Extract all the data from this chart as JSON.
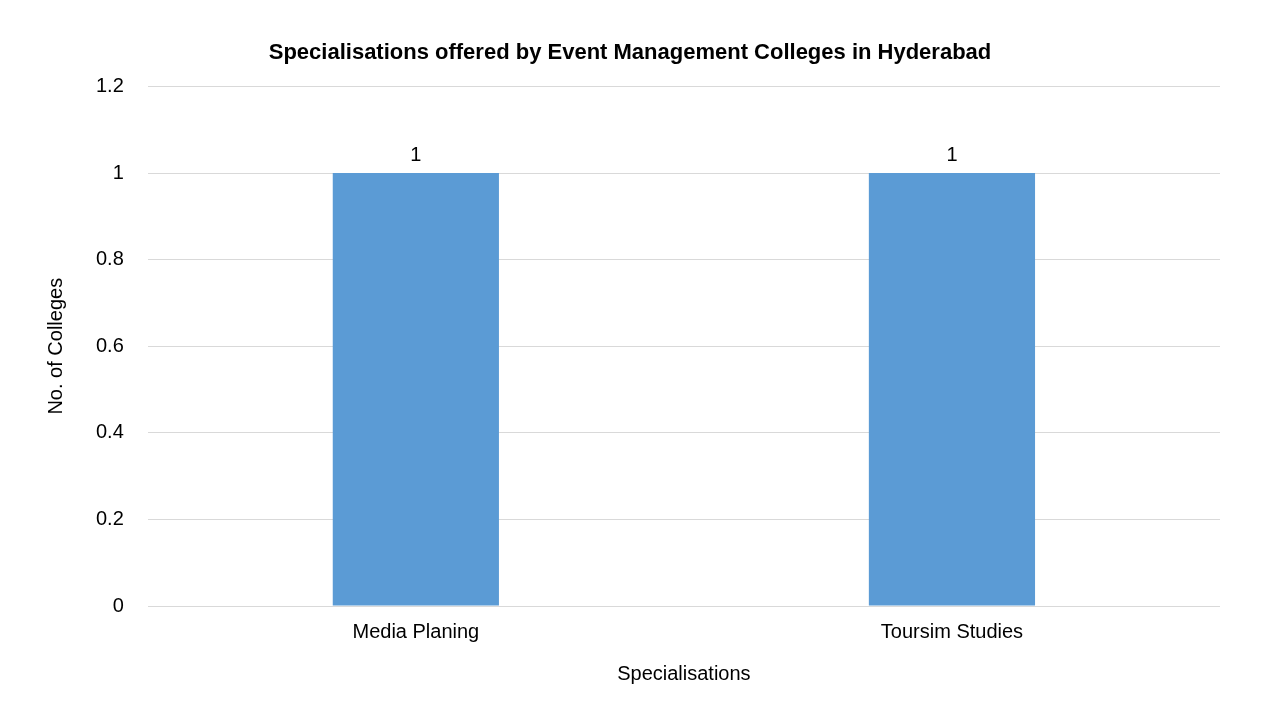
{
  "chart_data": {
    "type": "bar",
    "title": "Specialisations offered by Event Management Colleges in Hyderabad",
    "xlabel": "Specialisations",
    "ylabel": "No. of Colleges",
    "categories": [
      "Media Planing",
      "Toursim Studies"
    ],
    "values": [
      1,
      1
    ],
    "color": "#5b9bd5",
    "ylim": [
      0,
      1.2
    ],
    "yticks": [
      0,
      0.2,
      0.4,
      0.6,
      0.8,
      1,
      1.2
    ],
    "grid": "y",
    "data_labels": true,
    "legend": false
  }
}
